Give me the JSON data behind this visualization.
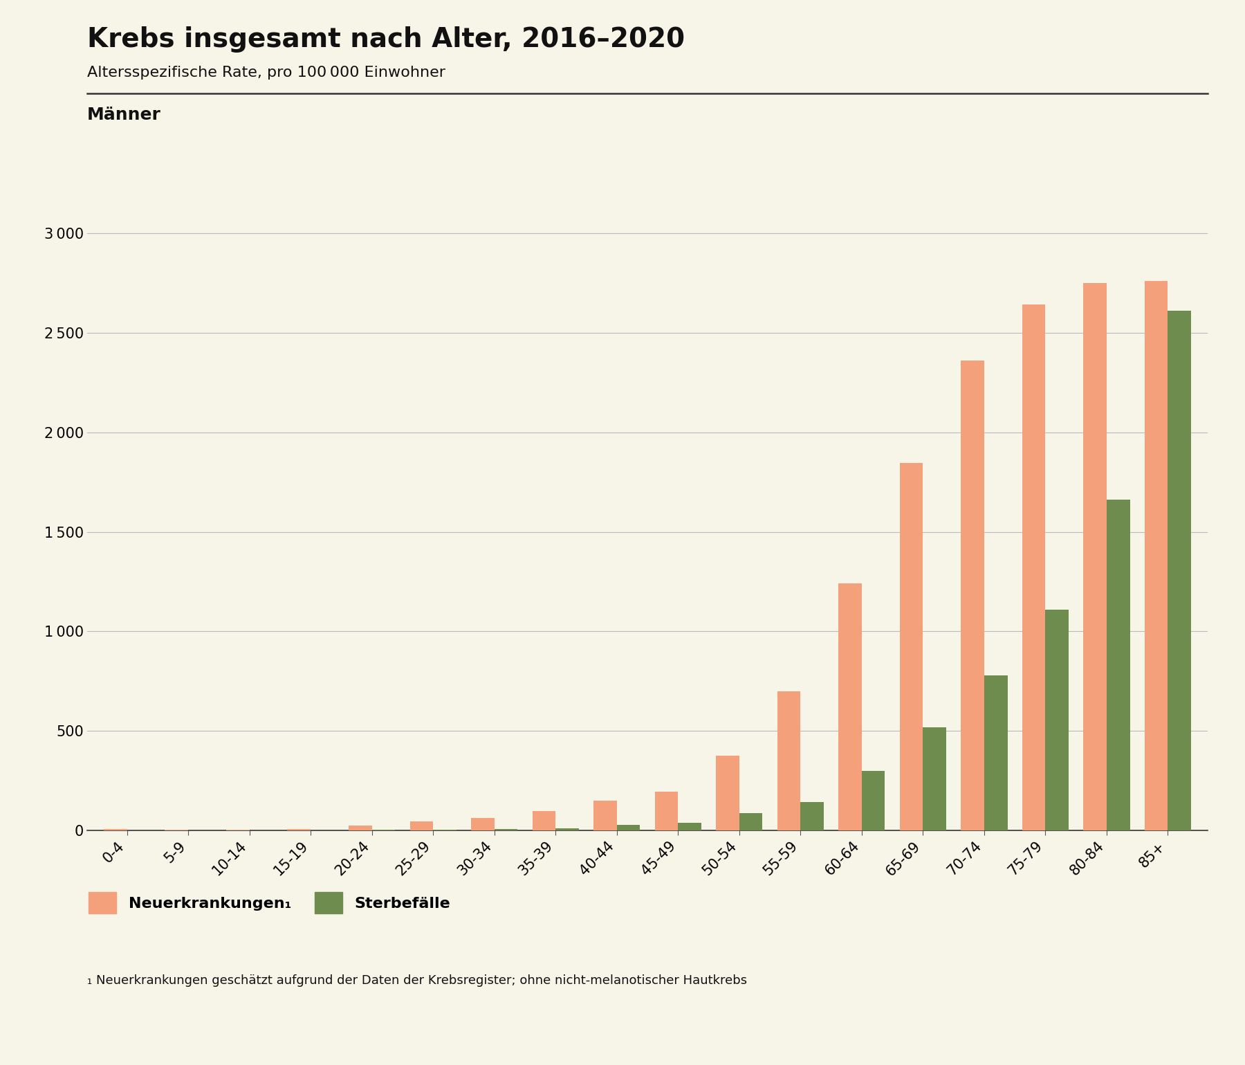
{
  "title": "Krebs insgesamt nach Alter, 2016–2020",
  "subtitle": "Altersspezifische Rate, pro 100 000 Einwohner",
  "section_label": "Männer",
  "background_color": "#f7f4e8",
  "age_groups": [
    "0-4",
    "5-9",
    "10-14",
    "15-19",
    "20-24",
    "25-29",
    "30-34",
    "35-39",
    "40-44",
    "45-49",
    "50-54",
    "55-59",
    "60-64",
    "65-69",
    "70-74",
    "75-79",
    "80-84",
    "85+"
  ],
  "neuerkrankungen": [
    8,
    5,
    5,
    8,
    25,
    45,
    65,
    100,
    150,
    195,
    375,
    700,
    1240,
    1845,
    2360,
    2640,
    2750,
    2760
  ],
  "sterbefaelle": [
    3,
    2,
    2,
    3,
    4,
    5,
    8,
    12,
    30,
    40,
    90,
    145,
    300,
    520,
    780,
    1110,
    1660,
    2610
  ],
  "neuerkrankungen_color": "#f4a07a",
  "sterbefaelle_color": "#6e8c4e",
  "yticks": [
    0,
    500,
    1000,
    1500,
    2000,
    2500,
    3000
  ],
  "ytick_labels": [
    "0",
    "500",
    "1 000",
    "1 500",
    "2 000",
    "2 500",
    "3 000"
  ],
  "ylim": [
    0,
    3100
  ],
  "legend_neuerkrankungen": "Neuerkrankungen₁",
  "legend_sterbefaelle": "Sterbefälle",
  "footnote": "₁ Neuerkrankungen geschätzt aufgrund der Daten der Krebsregister; ohne nicht-melanotischer Hautkrebs",
  "title_fontsize": 28,
  "subtitle_fontsize": 16,
  "section_fontsize": 18,
  "axis_fontsize": 15,
  "legend_fontsize": 16,
  "footnote_fontsize": 13,
  "bar_width": 0.38
}
